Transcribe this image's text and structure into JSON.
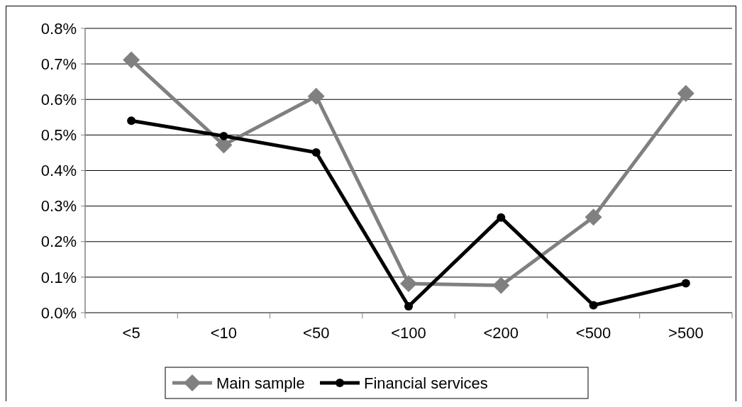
{
  "chart_data": {
    "type": "line",
    "categories": [
      "<5",
      "<10",
      "<50",
      "<100",
      "<200",
      "<500",
      ">500"
    ],
    "series": [
      {
        "name": "Main sample",
        "color": "#808080",
        "marker": "diamond",
        "values": [
          0.711,
          0.472,
          0.609,
          0.082,
          0.077,
          0.269,
          0.617
        ]
      },
      {
        "name": "Financial services",
        "color": "#000000",
        "marker": "circle",
        "values": [
          0.54,
          0.497,
          0.451,
          0.018,
          0.268,
          0.021,
          0.083
        ]
      }
    ],
    "ylim": [
      0,
      0.8
    ],
    "yticks": [
      {
        "value": 0,
        "label": "0.0%"
      },
      {
        "value": 0.1,
        "label": "0.1%"
      },
      {
        "value": 0.2,
        "label": "0.2%"
      },
      {
        "value": 0.3,
        "label": "0.3%"
      },
      {
        "value": 0.4,
        "label": "0.4%"
      },
      {
        "value": 0.5,
        "label": "0.5%"
      },
      {
        "value": 0.6,
        "label": "0.6%"
      },
      {
        "value": 0.7,
        "label": "0.7%"
      },
      {
        "value": 0.8,
        "label": "0.8%"
      }
    ],
    "grid": "y",
    "legend": "bottom",
    "line_style": "solid"
  }
}
